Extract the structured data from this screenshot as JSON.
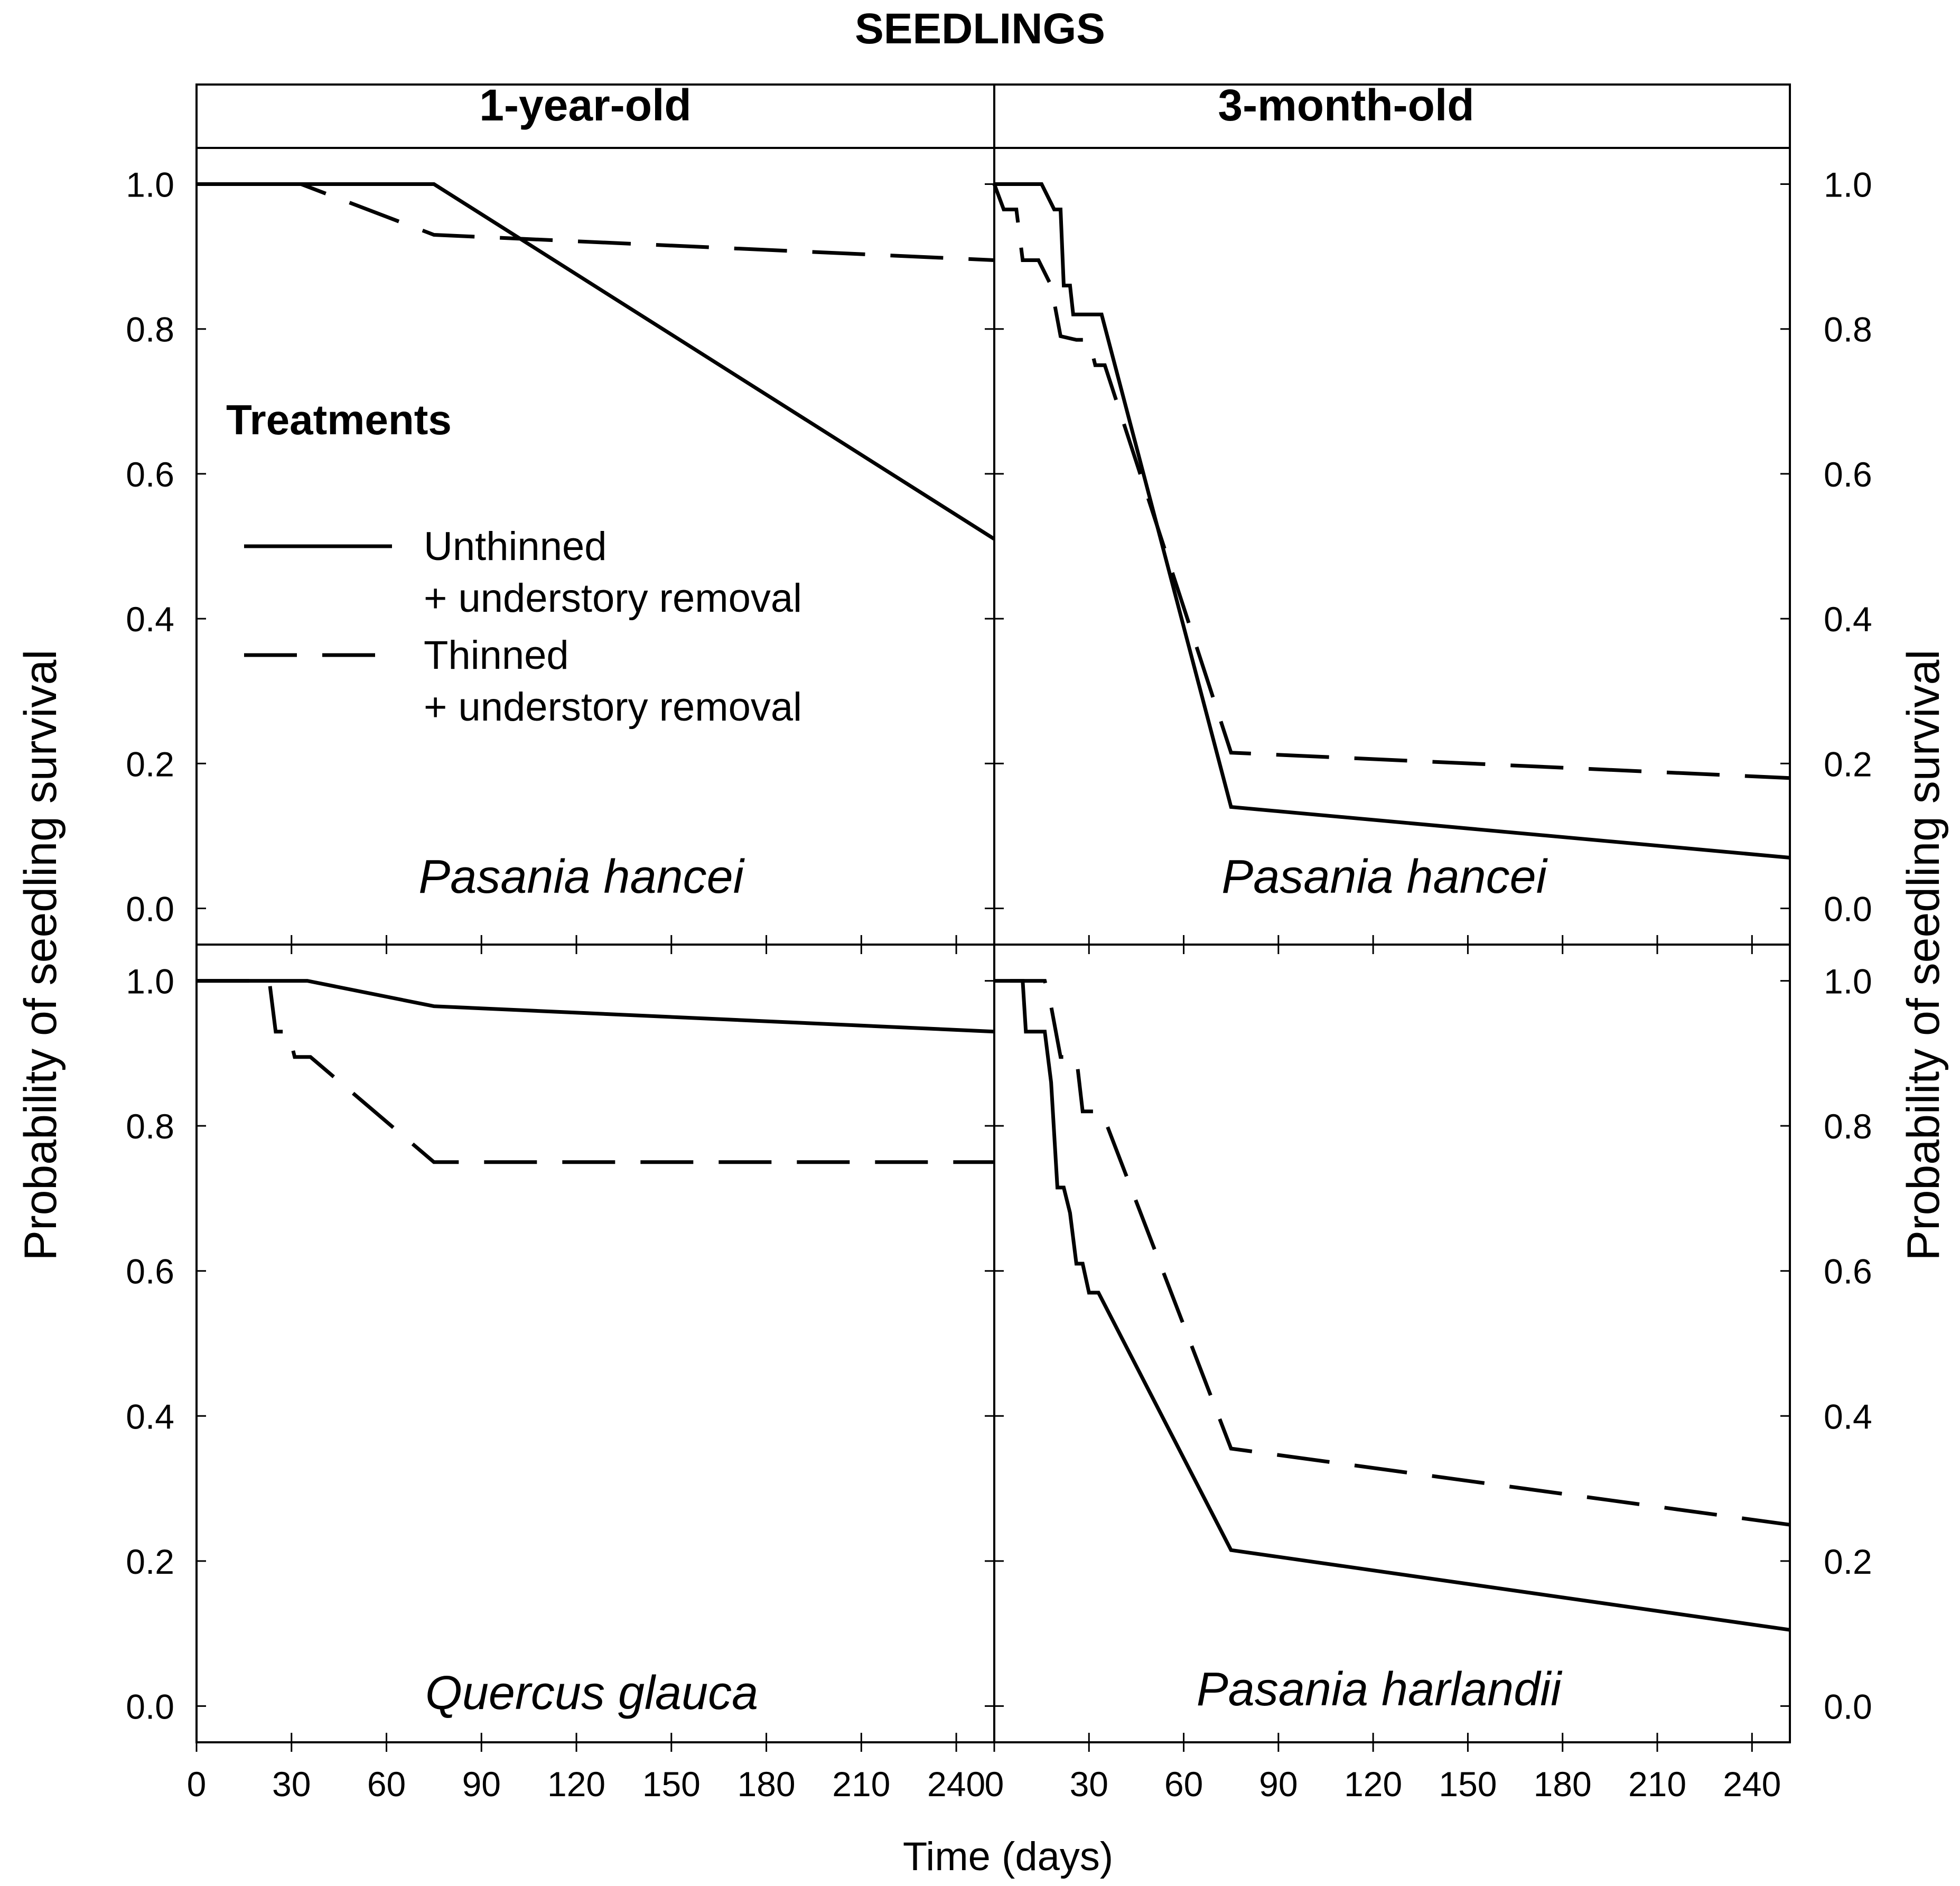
{
  "chart_data": {
    "type": "line",
    "title": "SEEDLINGS",
    "column_titles": [
      "1-year-old",
      "3-month-old"
    ],
    "xlabel": "Time (days)",
    "ylabel": "Probability of seedling survival",
    "xlim": [
      0,
      252
    ],
    "ylim": [
      -0.05,
      1.05
    ],
    "x_ticks": [
      0,
      30,
      60,
      90,
      120,
      150,
      180,
      210,
      240
    ],
    "x_tick_labels": [
      "0",
      "30",
      "60",
      "90",
      "120",
      "150",
      "180",
      "210",
      "240"
    ],
    "y_ticks": [
      0.0,
      0.2,
      0.4,
      0.6,
      0.8,
      1.0
    ],
    "y_tick_labels": [
      "0.0",
      "0.2",
      "0.4",
      "0.6",
      "0.8",
      "1.0"
    ],
    "legend": {
      "title": "Treatments",
      "placement": "top-left panel",
      "entries": [
        {
          "line1": "Unthinned",
          "line2": "+ understory removal",
          "style": "solid"
        },
        {
          "line1": "Thinned",
          "line2": "+ understory removal",
          "style": "dashed"
        }
      ]
    },
    "panels": [
      {
        "row": 0,
        "col": 0,
        "species": "Pasania hancei",
        "series": [
          {
            "name": "Unthinned + understory removal",
            "style": "solid",
            "points": [
              [
                0,
                1.0
              ],
              [
                75,
                1.0
              ],
              [
                252,
                0.51
              ]
            ]
          },
          {
            "name": "Thinned + understory removal",
            "style": "dashed",
            "points": [
              [
                0,
                1.0
              ],
              [
                33,
                1.0
              ],
              [
                75,
                0.93
              ],
              [
                252,
                0.895
              ]
            ]
          }
        ]
      },
      {
        "row": 0,
        "col": 1,
        "species": "Pasania hancei",
        "series": [
          {
            "name": "Unthinned + understory removal",
            "style": "solid",
            "points": [
              [
                0,
                1.0
              ],
              [
                15,
                1.0
              ],
              [
                19,
                0.965
              ],
              [
                21,
                0.965
              ],
              [
                22,
                0.86
              ],
              [
                24,
                0.86
              ],
              [
                25,
                0.82
              ],
              [
                34,
                0.82
              ],
              [
                75,
                0.14
              ],
              [
                252,
                0.07
              ]
            ]
          },
          {
            "name": "Thinned + understory removal",
            "style": "dashed",
            "points": [
              [
                0,
                1.0
              ],
              [
                3,
                0.965
              ],
              [
                7,
                0.965
              ],
              [
                9,
                0.895
              ],
              [
                14,
                0.895
              ],
              [
                18,
                0.86
              ],
              [
                21,
                0.79
              ],
              [
                26,
                0.785
              ],
              [
                30,
                0.785
              ],
              [
                32,
                0.75
              ],
              [
                35,
                0.75
              ],
              [
                75,
                0.215
              ],
              [
                252,
                0.18
              ]
            ]
          }
        ]
      },
      {
        "row": 1,
        "col": 0,
        "species": "Quercus glauca",
        "series": [
          {
            "name": "Unthinned + understory removal",
            "style": "solid",
            "points": [
              [
                0,
                1.0
              ],
              [
                35,
                1.0
              ],
              [
                75,
                0.965
              ],
              [
                252,
                0.93
              ]
            ]
          },
          {
            "name": "Thinned + understory removal",
            "style": "dashed",
            "points": [
              [
                0,
                1.0
              ],
              [
                23,
                1.0
              ],
              [
                25,
                0.93
              ],
              [
                29,
                0.93
              ],
              [
                31,
                0.895
              ],
              [
                36,
                0.895
              ],
              [
                75,
                0.75
              ],
              [
                252,
                0.75
              ]
            ]
          }
        ]
      },
      {
        "row": 1,
        "col": 1,
        "species": "Pasania harlandii",
        "series": [
          {
            "name": "Unthinned + understory removal",
            "style": "solid",
            "points": [
              [
                5,
                1.0
              ],
              [
                9,
                1.0
              ],
              [
                10,
                0.93
              ],
              [
                16,
                0.93
              ],
              [
                18,
                0.86
              ],
              [
                20,
                0.715
              ],
              [
                22,
                0.715
              ],
              [
                24,
                0.68
              ],
              [
                26,
                0.61
              ],
              [
                28,
                0.61
              ],
              [
                30,
                0.57
              ],
              [
                33,
                0.57
              ],
              [
                75,
                0.215
              ],
              [
                252,
                0.105
              ]
            ]
          },
          {
            "name": "Thinned + understory removal",
            "style": "dashed",
            "points": [
              [
                0,
                1.0
              ],
              [
                16,
                1.0
              ],
              [
                18,
                0.965
              ],
              [
                21,
                0.895
              ],
              [
                26,
                0.895
              ],
              [
                28,
                0.82
              ],
              [
                34,
                0.82
              ],
              [
                75,
                0.355
              ],
              [
                252,
                0.25
              ]
            ]
          }
        ]
      }
    ]
  }
}
